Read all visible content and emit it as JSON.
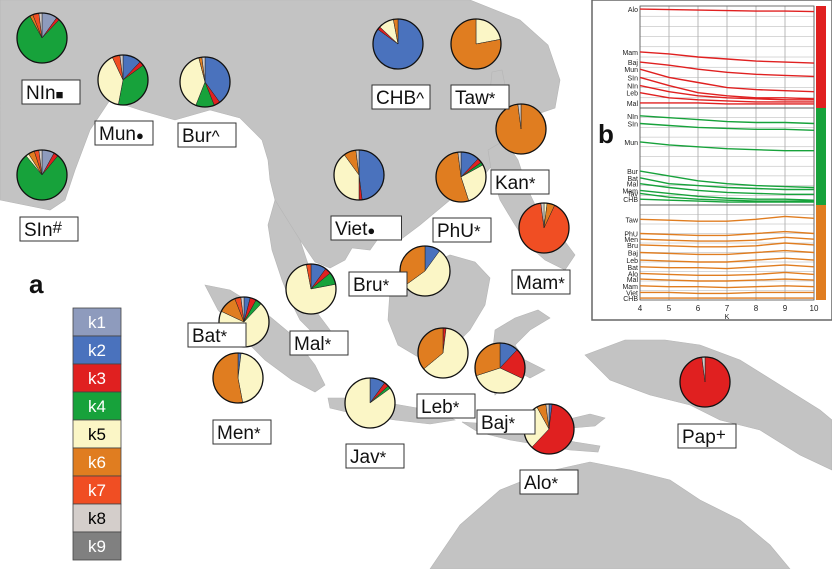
{
  "figure": {
    "panel_a_label": "a",
    "panel_b_label": "b"
  },
  "colors": {
    "ocean": "#ffffff",
    "land": "#c3c3c3",
    "k1": "#8e9bbd",
    "k2": "#4a72bd",
    "k3": "#e02020",
    "k4": "#17a23b",
    "k5": "#fbf6c6",
    "k6": "#e07d20",
    "k7": "#f04e23",
    "k8": "#d4cecb",
    "k9": "#808080"
  },
  "legend": {
    "items": [
      {
        "label": "k1",
        "color": "#8e9bbd",
        "text_color": "#ffffff"
      },
      {
        "label": "k2",
        "color": "#4a72bd",
        "text_color": "#ffffff"
      },
      {
        "label": "k3",
        "color": "#e02020",
        "text_color": "#ffffff"
      },
      {
        "label": "k4",
        "color": "#17a23b",
        "text_color": "#ffffff"
      },
      {
        "label": "k5",
        "color": "#fbf6c6",
        "text_color": "#000000"
      },
      {
        "label": "k6",
        "color": "#e07d20",
        "text_color": "#ffffff"
      },
      {
        "label": "k7",
        "color": "#f04e23",
        "text_color": "#ffffff"
      },
      {
        "label": "k8",
        "color": "#d4cecb",
        "text_color": "#000000"
      },
      {
        "label": "k9",
        "color": "#808080",
        "text_color": "#ffffff"
      }
    ]
  },
  "chart_data": [
    {
      "type": "pie",
      "component_order": [
        "k1",
        "k2",
        "k3",
        "k4",
        "k5",
        "k6",
        "k7",
        "k8",
        "k9"
      ],
      "populations": [
        {
          "label": "NIn",
          "marker": "■",
          "shares": [
            0.1,
            0.0,
            0.02,
            0.8,
            0.0,
            0.02,
            0.04,
            0.02,
            0.0
          ]
        },
        {
          "label": "SIn",
          "marker": "#",
          "shares": [
            0.08,
            0.0,
            0.03,
            0.78,
            0.02,
            0.04,
            0.03,
            0.02,
            0.0
          ]
        },
        {
          "label": "Mun",
          "marker": "●",
          "shares": [
            0.0,
            0.12,
            0.03,
            0.38,
            0.4,
            0.0,
            0.05,
            0.02,
            0.0
          ]
        },
        {
          "label": "Bur",
          "marker": "^",
          "shares": [
            0.0,
            0.4,
            0.04,
            0.12,
            0.4,
            0.02,
            0.0,
            0.02,
            0.0
          ]
        },
        {
          "label": "CHB",
          "marker": "^",
          "shares": [
            0.0,
            0.85,
            0.02,
            0.0,
            0.1,
            0.03,
            0.0,
            0.0,
            0.0
          ]
        },
        {
          "label": "Taw",
          "marker": "*",
          "shares": [
            0.0,
            0.0,
            0.0,
            0.0,
            0.22,
            0.78,
            0.0,
            0.0,
            0.0
          ]
        },
        {
          "label": "Viet",
          "marker": "●",
          "shares": [
            0.0,
            0.48,
            0.02,
            0.0,
            0.4,
            0.08,
            0.0,
            0.02,
            0.0
          ]
        },
        {
          "label": "Kan",
          "marker": "*",
          "shares": [
            0.0,
            0.0,
            0.0,
            0.0,
            0.0,
            0.98,
            0.0,
            0.02,
            0.0
          ]
        },
        {
          "label": "PhU",
          "marker": "*",
          "shares": [
            0.0,
            0.12,
            0.03,
            0.02,
            0.28,
            0.53,
            0.0,
            0.02,
            0.0
          ]
        },
        {
          "label": "Mam",
          "marker": "*",
          "shares": [
            0.0,
            0.0,
            0.0,
            0.0,
            0.02,
            0.05,
            0.91,
            0.02,
            0.0
          ]
        },
        {
          "label": "Bru",
          "marker": "*",
          "shares": [
            0.0,
            0.1,
            0.0,
            0.0,
            0.55,
            0.35,
            0.0,
            0.0,
            0.0
          ]
        },
        {
          "label": "Bat",
          "marker": "*",
          "shares": [
            0.0,
            0.04,
            0.04,
            0.04,
            0.7,
            0.12,
            0.04,
            0.02,
            0.0
          ]
        },
        {
          "label": "Mal",
          "marker": "*",
          "shares": [
            0.0,
            0.1,
            0.04,
            0.08,
            0.75,
            0.0,
            0.03,
            0.0,
            0.0
          ]
        },
        {
          "label": "Men",
          "marker": "*",
          "shares": [
            0.0,
            0.02,
            0.0,
            0.0,
            0.45,
            0.53,
            0.0,
            0.0,
            0.0
          ]
        },
        {
          "label": "Leb",
          "marker": "*",
          "shares": [
            0.0,
            0.0,
            0.02,
            0.0,
            0.62,
            0.36,
            0.0,
            0.0,
            0.0
          ]
        },
        {
          "label": "Jav",
          "marker": "*",
          "shares": [
            0.0,
            0.1,
            0.03,
            0.02,
            0.85,
            0.0,
            0.0,
            0.0,
            0.0
          ]
        },
        {
          "label": "Baj",
          "marker": "*",
          "shares": [
            0.0,
            0.12,
            0.2,
            0.0,
            0.38,
            0.3,
            0.0,
            0.0,
            0.0
          ]
        },
        {
          "label": "Alo",
          "marker": "*",
          "shares": [
            0.0,
            0.02,
            0.6,
            0.0,
            0.3,
            0.06,
            0.0,
            0.02,
            0.0
          ]
        },
        {
          "label": "Pap",
          "marker": "+",
          "shares": [
            0.0,
            0.0,
            0.98,
            0.0,
            0.0,
            0.0,
            0.0,
            0.02,
            0.0
          ]
        }
      ]
    },
    {
      "type": "line",
      "xlabel": "K",
      "x": [
        4,
        5,
        6,
        7,
        8,
        9,
        10
      ],
      "xlim": [
        4,
        10
      ],
      "panels": [
        {
          "color": "#e02020",
          "series": [
            {
              "name": "Alo",
              "values": [
                0.97,
                0.965,
                0.96,
                0.955,
                0.95,
                0.95,
                0.945
              ]
            },
            {
              "name": "Mam",
              "values": [
                0.55,
                0.53,
                0.5,
                0.48,
                0.46,
                0.45,
                0.44
              ]
            },
            {
              "name": "Baj",
              "values": [
                0.45,
                0.42,
                0.38,
                0.35,
                0.33,
                0.32,
                0.31
              ]
            },
            {
              "name": "Mun",
              "values": [
                0.38,
                0.3,
                0.25,
                0.2,
                0.18,
                0.17,
                0.16
              ]
            },
            {
              "name": "SIn",
              "values": [
                0.3,
                0.22,
                0.15,
                0.12,
                0.1,
                0.1,
                0.09
              ]
            },
            {
              "name": "NIn",
              "values": [
                0.22,
                0.16,
                0.12,
                0.1,
                0.09,
                0.08,
                0.08
              ]
            },
            {
              "name": "Leb",
              "values": [
                0.15,
                0.1,
                0.08,
                0.07,
                0.06,
                0.06,
                0.06
              ]
            },
            {
              "name": "Mal",
              "values": [
                0.05,
                0.05,
                0.05,
                0.04,
                0.04,
                0.04,
                0.04
              ]
            }
          ]
        },
        {
          "color": "#17a23b",
          "series": [
            {
              "name": "NIn",
              "values": [
                0.92,
                0.9,
                0.88,
                0.86,
                0.85,
                0.85,
                0.84
              ]
            },
            {
              "name": "SIn",
              "values": [
                0.84,
                0.82,
                0.8,
                0.79,
                0.78,
                0.78,
                0.77
              ]
            },
            {
              "name": "Mun",
              "values": [
                0.65,
                0.62,
                0.6,
                0.58,
                0.57,
                0.56,
                0.56
              ]
            },
            {
              "name": "Bur",
              "values": [
                0.35,
                0.3,
                0.25,
                0.22,
                0.2,
                0.19,
                0.18
              ]
            },
            {
              "name": "Bat",
              "values": [
                0.28,
                0.22,
                0.2,
                0.18,
                0.17,
                0.16,
                0.16
              ]
            },
            {
              "name": "Mal",
              "values": [
                0.22,
                0.18,
                0.15,
                0.13,
                0.12,
                0.11,
                0.11
              ]
            },
            {
              "name": "Mam",
              "values": [
                0.15,
                0.12,
                0.09,
                0.07,
                0.06,
                0.06,
                0.05
              ]
            },
            {
              "name": "Tav",
              "values": [
                0.12,
                0.08,
                0.06,
                0.05,
                0.04,
                0.04,
                0.04
              ]
            },
            {
              "name": "CHB",
              "values": [
                0.06,
                0.05,
                0.04,
                0.03,
                0.03,
                0.03,
                0.03
              ]
            }
          ]
        },
        {
          "color": "#e07d20",
          "series": [
            {
              "name": "Taw",
              "values": [
                0.85,
                0.84,
                0.83,
                0.83,
                0.85,
                0.88,
                0.86
              ]
            },
            {
              "name": "PhU",
              "values": [
                0.7,
                0.69,
                0.68,
                0.68,
                0.7,
                0.72,
                0.7
              ]
            },
            {
              "name": "Men",
              "values": [
                0.64,
                0.63,
                0.62,
                0.62,
                0.63,
                0.66,
                0.64
              ]
            },
            {
              "name": "Bru",
              "values": [
                0.58,
                0.57,
                0.56,
                0.56,
                0.57,
                0.6,
                0.58
              ]
            },
            {
              "name": "Baj",
              "values": [
                0.5,
                0.49,
                0.48,
                0.48,
                0.5,
                0.52,
                0.5
              ]
            },
            {
              "name": "Leb",
              "values": [
                0.42,
                0.41,
                0.4,
                0.4,
                0.42,
                0.44,
                0.42
              ]
            },
            {
              "name": "Bat",
              "values": [
                0.35,
                0.34,
                0.34,
                0.33,
                0.35,
                0.37,
                0.35
              ]
            },
            {
              "name": "Alo",
              "values": [
                0.28,
                0.27,
                0.26,
                0.26,
                0.27,
                0.29,
                0.27
              ]
            },
            {
              "name": "Mal",
              "values": [
                0.22,
                0.21,
                0.2,
                0.2,
                0.21,
                0.22,
                0.21
              ]
            },
            {
              "name": "Mam",
              "values": [
                0.15,
                0.14,
                0.14,
                0.13,
                0.14,
                0.15,
                0.14
              ]
            },
            {
              "name": "Viet",
              "values": [
                0.08,
                0.08,
                0.07,
                0.07,
                0.08,
                0.08,
                0.08
              ]
            },
            {
              "name": "CHB",
              "values": [
                0.02,
                0.02,
                0.02,
                0.02,
                0.02,
                0.02,
                0.02
              ]
            }
          ]
        }
      ]
    }
  ]
}
